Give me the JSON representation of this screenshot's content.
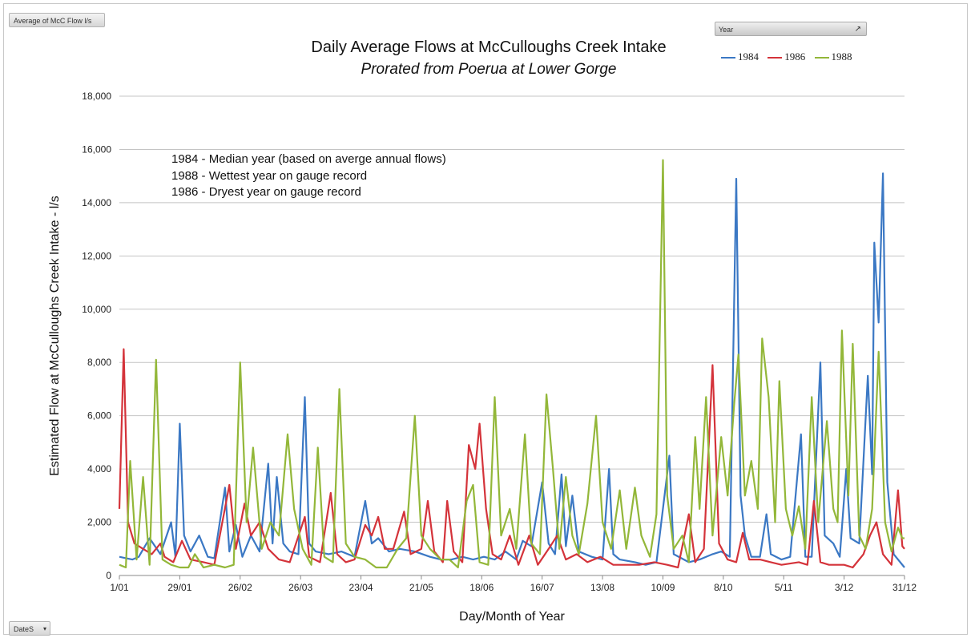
{
  "pivot": {
    "value_field": "Average of McC Flow l/s",
    "row_field": "DateS",
    "filter_label": "Year"
  },
  "chart_data": {
    "type": "line",
    "title": "Daily Average Flows at McCulloughs Creek Intake",
    "subtitle": "Prorated from Poerua at Lower Gorge",
    "xlabel": "Day/Month of Year",
    "ylabel": "Estimated Flow at McCulloughs Creek Intake - l/s",
    "ylim": [
      0,
      18000
    ],
    "yticks": [
      "0",
      "2,000",
      "4,000",
      "6,000",
      "8,000",
      "10,000",
      "12,000",
      "14,000",
      "16,000",
      "18,000"
    ],
    "x_tick_labels": [
      "1/01",
      "29/01",
      "26/02",
      "26/03",
      "23/04",
      "21/05",
      "18/06",
      "16/07",
      "13/08",
      "10/09",
      "8/10",
      "5/11",
      "3/12",
      "31/12"
    ],
    "x_tick_days": [
      1,
      29,
      57,
      85,
      113,
      141,
      169,
      197,
      225,
      253,
      281,
      309,
      337,
      365
    ],
    "legend_position": "top-right",
    "grid": true,
    "annotations": [
      "1984 - Median year (based on averge annual flows)",
      "1988 - Wettest year on gauge record",
      "1986 - Dryest year on gauge record"
    ],
    "series": [
      {
        "name": "1984",
        "color": "#3b78c4",
        "points": [
          [
            1,
            700
          ],
          [
            4,
            650
          ],
          [
            7,
            600
          ],
          [
            10,
            700
          ],
          [
            15,
            1400
          ],
          [
            20,
            800
          ],
          [
            25,
            2000
          ],
          [
            27,
            700
          ],
          [
            29,
            5700
          ],
          [
            31,
            1500
          ],
          [
            34,
            900
          ],
          [
            38,
            1500
          ],
          [
            42,
            700
          ],
          [
            45,
            650
          ],
          [
            50,
            3300
          ],
          [
            52,
            900
          ],
          [
            55,
            1900
          ],
          [
            58,
            700
          ],
          [
            62,
            1500
          ],
          [
            66,
            900
          ],
          [
            70,
            4200
          ],
          [
            72,
            1200
          ],
          [
            74,
            3700
          ],
          [
            77,
            1200
          ],
          [
            80,
            900
          ],
          [
            84,
            800
          ],
          [
            87,
            6700
          ],
          [
            89,
            1200
          ],
          [
            92,
            900
          ],
          [
            98,
            800
          ],
          [
            104,
            900
          ],
          [
            110,
            700
          ],
          [
            115,
            2800
          ],
          [
            118,
            1200
          ],
          [
            121,
            1400
          ],
          [
            126,
            900
          ],
          [
            131,
            1000
          ],
          [
            138,
            900
          ],
          [
            145,
            700
          ],
          [
            150,
            600
          ],
          [
            155,
            600
          ],
          [
            160,
            700
          ],
          [
            165,
            600
          ],
          [
            170,
            700
          ],
          [
            175,
            600
          ],
          [
            180,
            900
          ],
          [
            185,
            600
          ],
          [
            188,
            1300
          ],
          [
            192,
            1100
          ],
          [
            197,
            3500
          ],
          [
            200,
            1200
          ],
          [
            203,
            800
          ],
          [
            206,
            3800
          ],
          [
            208,
            1100
          ],
          [
            211,
            3000
          ],
          [
            214,
            900
          ],
          [
            220,
            700
          ],
          [
            225,
            600
          ],
          [
            228,
            4000
          ],
          [
            230,
            800
          ],
          [
            233,
            600
          ],
          [
            240,
            500
          ],
          [
            245,
            400
          ],
          [
            250,
            500
          ],
          [
            256,
            4500
          ],
          [
            258,
            800
          ],
          [
            265,
            500
          ],
          [
            270,
            600
          ],
          [
            276,
            800
          ],
          [
            280,
            900
          ],
          [
            284,
            700
          ],
          [
            287,
            14900
          ],
          [
            289,
            3000
          ],
          [
            291,
            1500
          ],
          [
            294,
            700
          ],
          [
            298,
            700
          ],
          [
            301,
            2300
          ],
          [
            303,
            800
          ],
          [
            308,
            600
          ],
          [
            312,
            700
          ],
          [
            317,
            5300
          ],
          [
            319,
            700
          ],
          [
            322,
            700
          ],
          [
            326,
            8000
          ],
          [
            328,
            1500
          ],
          [
            332,
            1200
          ],
          [
            335,
            700
          ],
          [
            338,
            4000
          ],
          [
            340,
            1400
          ],
          [
            344,
            1200
          ],
          [
            348,
            7500
          ],
          [
            350,
            3800
          ],
          [
            351,
            12500
          ],
          [
            353,
            9500
          ],
          [
            355,
            15100
          ],
          [
            357,
            3500
          ],
          [
            360,
            800
          ],
          [
            365,
            300
          ]
        ]
      },
      {
        "name": "1986",
        "color": "#d4333a",
        "points": [
          [
            1,
            2500
          ],
          [
            3,
            8500
          ],
          [
            5,
            2000
          ],
          [
            8,
            1200
          ],
          [
            12,
            1000
          ],
          [
            16,
            800
          ],
          [
            20,
            1200
          ],
          [
            22,
            700
          ],
          [
            26,
            500
          ],
          [
            30,
            1300
          ],
          [
            34,
            600
          ],
          [
            40,
            500
          ],
          [
            45,
            400
          ],
          [
            52,
            3400
          ],
          [
            55,
            1000
          ],
          [
            59,
            2700
          ],
          [
            62,
            1500
          ],
          [
            66,
            2000
          ],
          [
            70,
            1000
          ],
          [
            75,
            600
          ],
          [
            80,
            500
          ],
          [
            87,
            2200
          ],
          [
            89,
            700
          ],
          [
            94,
            500
          ],
          [
            99,
            3100
          ],
          [
            102,
            800
          ],
          [
            106,
            500
          ],
          [
            110,
            600
          ],
          [
            115,
            1900
          ],
          [
            118,
            1500
          ],
          [
            121,
            2200
          ],
          [
            124,
            1000
          ],
          [
            128,
            1000
          ],
          [
            133,
            2400
          ],
          [
            136,
            800
          ],
          [
            141,
            1000
          ],
          [
            144,
            2800
          ],
          [
            147,
            900
          ],
          [
            151,
            500
          ],
          [
            153,
            2800
          ],
          [
            156,
            900
          ],
          [
            160,
            500
          ],
          [
            163,
            4900
          ],
          [
            166,
            4000
          ],
          [
            168,
            5700
          ],
          [
            171,
            2500
          ],
          [
            174,
            800
          ],
          [
            178,
            600
          ],
          [
            182,
            1500
          ],
          [
            186,
            400
          ],
          [
            191,
            1500
          ],
          [
            195,
            400
          ],
          [
            200,
            1000
          ],
          [
            204,
            1500
          ],
          [
            208,
            600
          ],
          [
            213,
            800
          ],
          [
            218,
            500
          ],
          [
            224,
            700
          ],
          [
            230,
            400
          ],
          [
            236,
            400
          ],
          [
            242,
            400
          ],
          [
            249,
            500
          ],
          [
            255,
            400
          ],
          [
            260,
            300
          ],
          [
            265,
            2300
          ],
          [
            268,
            500
          ],
          [
            272,
            1000
          ],
          [
            276,
            7900
          ],
          [
            279,
            1200
          ],
          [
            283,
            600
          ],
          [
            287,
            500
          ],
          [
            290,
            1600
          ],
          [
            293,
            600
          ],
          [
            298,
            600
          ],
          [
            303,
            500
          ],
          [
            308,
            400
          ],
          [
            316,
            500
          ],
          [
            320,
            400
          ],
          [
            323,
            2800
          ],
          [
            326,
            500
          ],
          [
            330,
            400
          ],
          [
            337,
            400
          ],
          [
            341,
            300
          ],
          [
            346,
            800
          ],
          [
            349,
            1500
          ],
          [
            352,
            2000
          ],
          [
            355,
            800
          ],
          [
            359,
            400
          ],
          [
            362,
            3200
          ],
          [
            364,
            1100
          ],
          [
            365,
            1000
          ]
        ]
      },
      {
        "name": "1988",
        "color": "#93b739",
        "points": [
          [
            1,
            400
          ],
          [
            4,
            300
          ],
          [
            6,
            4300
          ],
          [
            9,
            600
          ],
          [
            12,
            3700
          ],
          [
            15,
            400
          ],
          [
            18,
            8100
          ],
          [
            21,
            600
          ],
          [
            25,
            400
          ],
          [
            29,
            300
          ],
          [
            33,
            300
          ],
          [
            36,
            800
          ],
          [
            40,
            300
          ],
          [
            45,
            400
          ],
          [
            50,
            300
          ],
          [
            54,
            400
          ],
          [
            57,
            8000
          ],
          [
            60,
            2000
          ],
          [
            63,
            4800
          ],
          [
            67,
            1000
          ],
          [
            71,
            2000
          ],
          [
            75,
            1500
          ],
          [
            79,
            5300
          ],
          [
            82,
            2500
          ],
          [
            86,
            1000
          ],
          [
            90,
            400
          ],
          [
            93,
            4800
          ],
          [
            96,
            700
          ],
          [
            100,
            500
          ],
          [
            103,
            7000
          ],
          [
            106,
            1200
          ],
          [
            110,
            700
          ],
          [
            115,
            600
          ],
          [
            120,
            300
          ],
          [
            125,
            300
          ],
          [
            130,
            1000
          ],
          [
            134,
            1400
          ],
          [
            138,
            6000
          ],
          [
            141,
            1500
          ],
          [
            145,
            1000
          ],
          [
            150,
            600
          ],
          [
            154,
            600
          ],
          [
            158,
            300
          ],
          [
            162,
            2800
          ],
          [
            165,
            3400
          ],
          [
            168,
            500
          ],
          [
            172,
            400
          ],
          [
            175,
            6700
          ],
          [
            178,
            1500
          ],
          [
            182,
            2500
          ],
          [
            185,
            1000
          ],
          [
            189,
            5300
          ],
          [
            192,
            1200
          ],
          [
            196,
            800
          ],
          [
            199,
            6800
          ],
          [
            202,
            4000
          ],
          [
            205,
            1000
          ],
          [
            208,
            3700
          ],
          [
            211,
            1500
          ],
          [
            214,
            800
          ],
          [
            218,
            2700
          ],
          [
            222,
            6000
          ],
          [
            225,
            2000
          ],
          [
            229,
            1000
          ],
          [
            233,
            3200
          ],
          [
            236,
            1000
          ],
          [
            240,
            3300
          ],
          [
            243,
            1500
          ],
          [
            247,
            700
          ],
          [
            250,
            2300
          ],
          [
            253,
            15600
          ],
          [
            255,
            3000
          ],
          [
            258,
            1000
          ],
          [
            262,
            1500
          ],
          [
            265,
            500
          ],
          [
            268,
            5200
          ],
          [
            270,
            2500
          ],
          [
            273,
            6700
          ],
          [
            276,
            1500
          ],
          [
            280,
            5200
          ],
          [
            283,
            3000
          ],
          [
            286,
            6400
          ],
          [
            288,
            8300
          ],
          [
            291,
            3000
          ],
          [
            294,
            4300
          ],
          [
            297,
            2500
          ],
          [
            299,
            8900
          ],
          [
            302,
            6700
          ],
          [
            305,
            2000
          ],
          [
            307,
            7300
          ],
          [
            310,
            2500
          ],
          [
            313,
            1500
          ],
          [
            316,
            2600
          ],
          [
            319,
            1000
          ],
          [
            322,
            6700
          ],
          [
            325,
            2000
          ],
          [
            329,
            5800
          ],
          [
            332,
            2500
          ],
          [
            334,
            2000
          ],
          [
            336,
            9200
          ],
          [
            339,
            3000
          ],
          [
            341,
            8700
          ],
          [
            344,
            1500
          ],
          [
            347,
            1000
          ],
          [
            350,
            2500
          ],
          [
            353,
            8400
          ],
          [
            356,
            2000
          ],
          [
            359,
            900
          ],
          [
            362,
            1800
          ],
          [
            364,
            1400
          ],
          [
            365,
            1400
          ]
        ]
      }
    ]
  }
}
